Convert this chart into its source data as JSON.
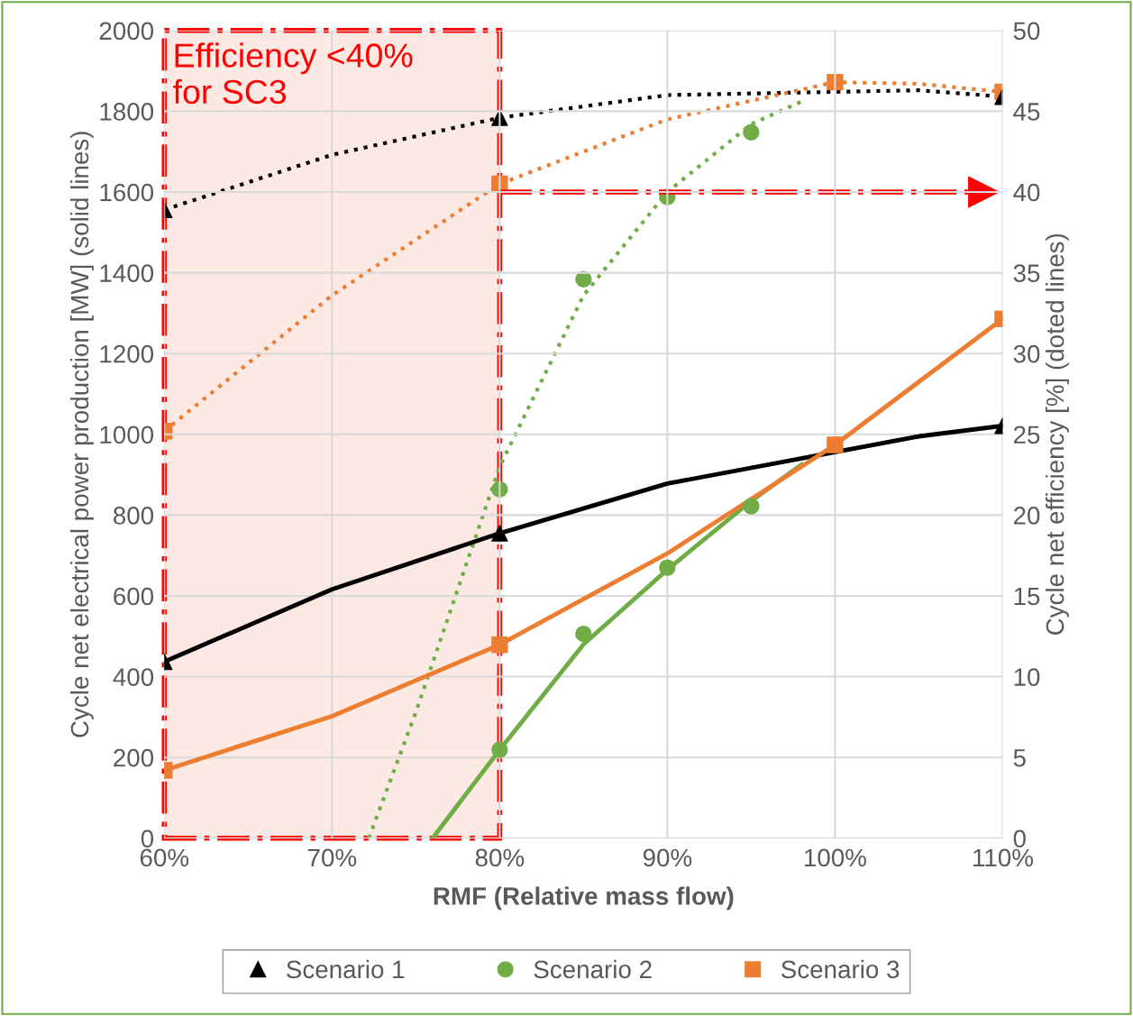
{
  "chart_data": {
    "type": "line",
    "xlabel": "RMF (Relative mass flow)",
    "ylabel": "Cycle net electrical power production [MW] (solid lines)",
    "y2label": "Cycle net efficiency [%] (doted lines)",
    "xlim": [
      60,
      110
    ],
    "xticks": [
      {
        "value": 60,
        "label": "60%"
      },
      {
        "value": 70,
        "label": "70%"
      },
      {
        "value": 80,
        "label": "80%"
      },
      {
        "value": 90,
        "label": "90%"
      },
      {
        "value": 100,
        "label": "100%"
      },
      {
        "value": 110,
        "label": "110%"
      }
    ],
    "ylim": [
      0,
      2000
    ],
    "yticks": [
      0,
      200,
      400,
      600,
      800,
      1000,
      1200,
      1400,
      1600,
      1800,
      2000
    ],
    "y2lim": [
      0,
      50
    ],
    "y2ticks": [
      0,
      5,
      10,
      15,
      20,
      25,
      30,
      35,
      40,
      45,
      50
    ],
    "grid": true,
    "legend": "bottom",
    "series": [
      {
        "line_style": "solid",
        "marker": "none",
        "color": "#000000",
        "x": [
          60,
          70,
          80,
          90,
          105,
          110
        ],
        "values": [
          437,
          616,
          755,
          878,
          995,
          1021
        ]
      },
      {
        "line_style": "dotted",
        "marker": "none",
        "axis": "y2",
        "color": "#000000",
        "x": [
          60,
          70,
          80,
          90,
          105,
          110
        ],
        "values": [
          38.9,
          42.3,
          44.6,
          46.0,
          46.3,
          45.9
        ]
      },
      {
        "line_style": "solid",
        "marker": "none",
        "color": "#70ad47",
        "x": [
          76,
          80,
          85,
          90,
          95,
          98
        ],
        "values": [
          0,
          219,
          480,
          665,
          835,
          925
        ]
      },
      {
        "line_style": "dotted",
        "marker": "none",
        "axis": "y2",
        "color": "#70ad47",
        "x": [
          72.2,
          75,
          80,
          85,
          90,
          95,
          98
        ],
        "values": [
          0,
          7.8,
          23.0,
          33.6,
          40.0,
          44.2,
          45.6
        ]
      },
      {
        "line_style": "solid",
        "marker": "none",
        "color": "#ed7d31",
        "x": [
          60,
          70,
          80,
          90,
          100,
          110
        ],
        "values": [
          168,
          302,
          479,
          705,
          974,
          1286
        ]
      },
      {
        "line_style": "dotted",
        "marker": "none",
        "axis": "y2",
        "color": "#ed7d31",
        "x": [
          60,
          70,
          80,
          90,
          100,
          105,
          110
        ],
        "values": [
          25.2,
          33.6,
          40.5,
          44.5,
          46.8,
          46.7,
          46.2
        ]
      },
      {
        "type": "scatter",
        "name": "Scenario 1",
        "marker": "triangle",
        "color": "#000000",
        "x": [
          60,
          80,
          110
        ],
        "values": [
          437,
          755,
          1021
        ]
      },
      {
        "type": "scatter",
        "marker": "triangle",
        "axis": "y2",
        "color": "#000000",
        "x": [
          60,
          80,
          110
        ],
        "values": [
          38.9,
          44.6,
          45.9
        ]
      },
      {
        "type": "scatter",
        "name": "Scenario 2",
        "marker": "circle",
        "color": "#70ad47",
        "x": [
          80,
          85,
          90,
          95
        ],
        "values": [
          219,
          506,
          670,
          822
        ]
      },
      {
        "type": "scatter",
        "marker": "circle",
        "axis": "y2",
        "color": "#70ad47",
        "x": [
          80,
          85,
          90,
          95
        ],
        "values": [
          21.6,
          34.6,
          39.7,
          43.7
        ]
      },
      {
        "type": "scatter",
        "name": "Scenario 3",
        "marker": "square",
        "color": "#ed7d31",
        "x": [
          60,
          80,
          100,
          110
        ],
        "values": [
          168,
          479,
          974,
          1286
        ]
      },
      {
        "type": "scatter",
        "marker": "square",
        "axis": "y2",
        "color": "#ed7d31",
        "x": [
          60,
          80,
          100,
          110
        ],
        "values": [
          25.2,
          40.5,
          46.8,
          46.2
        ]
      }
    ],
    "bands": [
      {
        "axis": "x",
        "from": 60,
        "to": 80,
        "label": "Efficiency <40%\nfor SC3",
        "color": "#fde9e3"
      }
    ],
    "ref_lines": [
      {
        "axis": "y2",
        "value": 40,
        "color": "#ff0000",
        "line_style": "dashdot"
      }
    ]
  }
}
